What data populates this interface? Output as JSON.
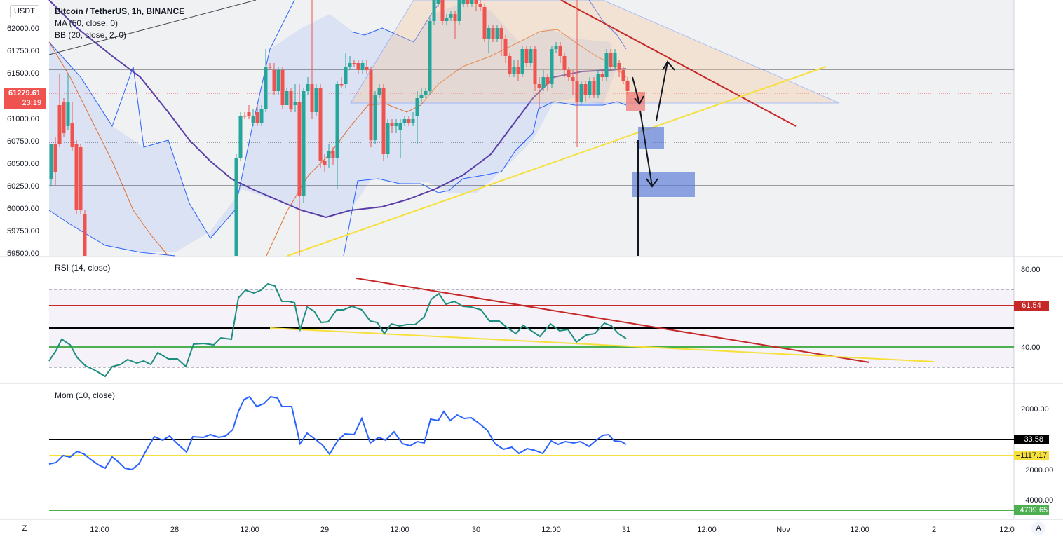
{
  "currency_button": "USDT",
  "main_pane": {
    "title": "Bitcoin / TetherUS, 1h, BINANCE",
    "indicator_ma": "MA (50, close, 0)",
    "indicator_bb": "BB (20, close, 2, 0)",
    "price_ticks": [
      "62000.00",
      "61750.00",
      "61500.00",
      "61000.00",
      "60750.00",
      "60500.00",
      "60250.00",
      "60000.00",
      "59750.00",
      "59500.00"
    ],
    "current_price": "61279.61",
    "countdown": "23:19",
    "colors": {
      "up": "#26a69a",
      "down": "#ef5350",
      "ma": "#5b3fa8",
      "bb": "#2962ff",
      "basis": "#e0702f",
      "trend": "#c62828",
      "support": "#f5e03c",
      "zone": "#6f89d9"
    }
  },
  "rsi_pane": {
    "title": "RSI (14, close)",
    "ticks": [
      "80.00",
      "40.00"
    ],
    "value_label": "61.54"
  },
  "mom_pane": {
    "title": "Mom (10, close)",
    "ticks": [
      "2000.00",
      "−2000.00",
      "−4000.00"
    ],
    "labels": {
      "black": "−33.58",
      "yellow": "−1117.17",
      "green": "−4709.65"
    }
  },
  "time_axis": [
    "12:00",
    "28",
    "12:00",
    "29",
    "12:00",
    "30",
    "12:00",
    "31",
    "12:00",
    "Nov",
    "12:00",
    "2",
    "12:0"
  ],
  "buttons": {
    "timezone": "Z",
    "auto": "A"
  }
}
